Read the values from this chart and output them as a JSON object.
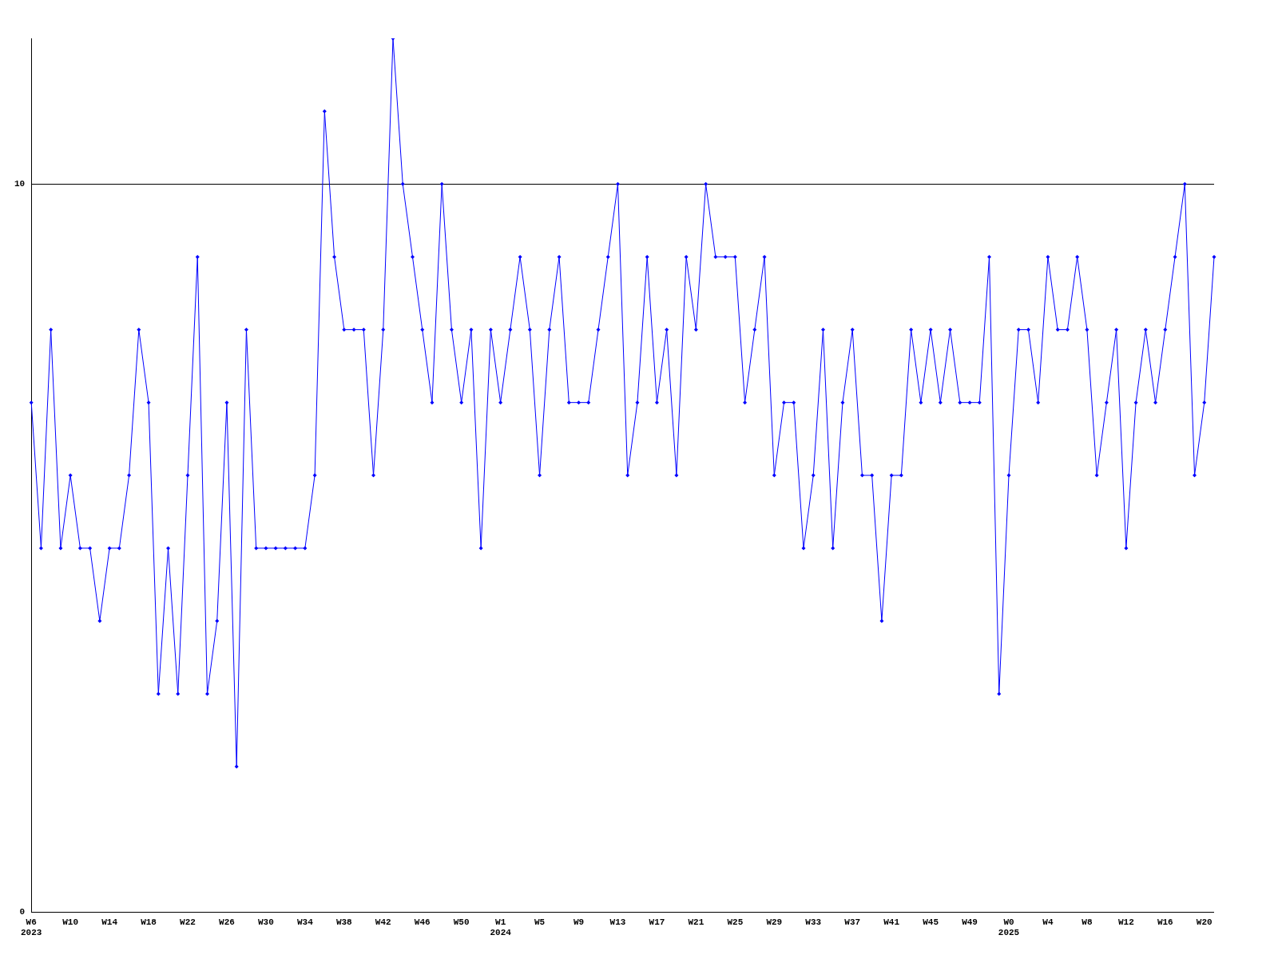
{
  "chart_data": {
    "type": "line",
    "categories": [
      "W6\n2023",
      null,
      null,
      null,
      "W10",
      null,
      null,
      null,
      "W14",
      null,
      null,
      null,
      "W18",
      null,
      null,
      null,
      "W22",
      null,
      null,
      null,
      "W26",
      null,
      null,
      null,
      "W30",
      null,
      null,
      null,
      "W34",
      null,
      null,
      null,
      "W38",
      null,
      null,
      null,
      "W42",
      null,
      null,
      null,
      "W46",
      null,
      null,
      null,
      "W50",
      null,
      null,
      null,
      "W1\n2024",
      null,
      null,
      null,
      "W5",
      null,
      null,
      null,
      "W9",
      null,
      null,
      null,
      "W13",
      null,
      null,
      null,
      "W17",
      null,
      null,
      null,
      "W21",
      null,
      null,
      null,
      "W25",
      null,
      null,
      null,
      "W29",
      null,
      null,
      null,
      "W33",
      null,
      null,
      null,
      "W37",
      null,
      null,
      null,
      "W41",
      null,
      null,
      null,
      "W45",
      null,
      null,
      null,
      "W49",
      null,
      null,
      null,
      "W0\n2025",
      null,
      null,
      null,
      "W4",
      null,
      null,
      null,
      "W8",
      null,
      null,
      null,
      "W12",
      null,
      null,
      null,
      "W16",
      null,
      null,
      null,
      "W20",
      null
    ],
    "series": [
      {
        "color": "#0000ff",
        "values": [
          7,
          5,
          8,
          5,
          6,
          5,
          5,
          4,
          5,
          5,
          6,
          8,
          7,
          3,
          5,
          3,
          6,
          9,
          3,
          4,
          7,
          2,
          8,
          5,
          5,
          5,
          5,
          5,
          5,
          6,
          11,
          9,
          8,
          8,
          8,
          6,
          8,
          12,
          10,
          9,
          8,
          7,
          10,
          8,
          7,
          8,
          5,
          8,
          7,
          8,
          9,
          8,
          6,
          8,
          9,
          7,
          7,
          7,
          8,
          9,
          10,
          6,
          7,
          9,
          7,
          8,
          6,
          9,
          8,
          10,
          9,
          9,
          9,
          7,
          8,
          9,
          6,
          7,
          7,
          5,
          6,
          8,
          5,
          7,
          8,
          6,
          6,
          4,
          6,
          6,
          8,
          7,
          8,
          7,
          8,
          7,
          7,
          7,
          9,
          3,
          6,
          8,
          8,
          7,
          9,
          8,
          8,
          9,
          8,
          6,
          7,
          8,
          5,
          7,
          8,
          7,
          8,
          9,
          10,
          6,
          7,
          9
        ]
      }
    ],
    "ylim": [
      0,
      12
    ],
    "yticks": [
      0,
      10
    ],
    "grid": "y",
    "marker": "diamond",
    "line_style": "solid",
    "legend": false
  }
}
